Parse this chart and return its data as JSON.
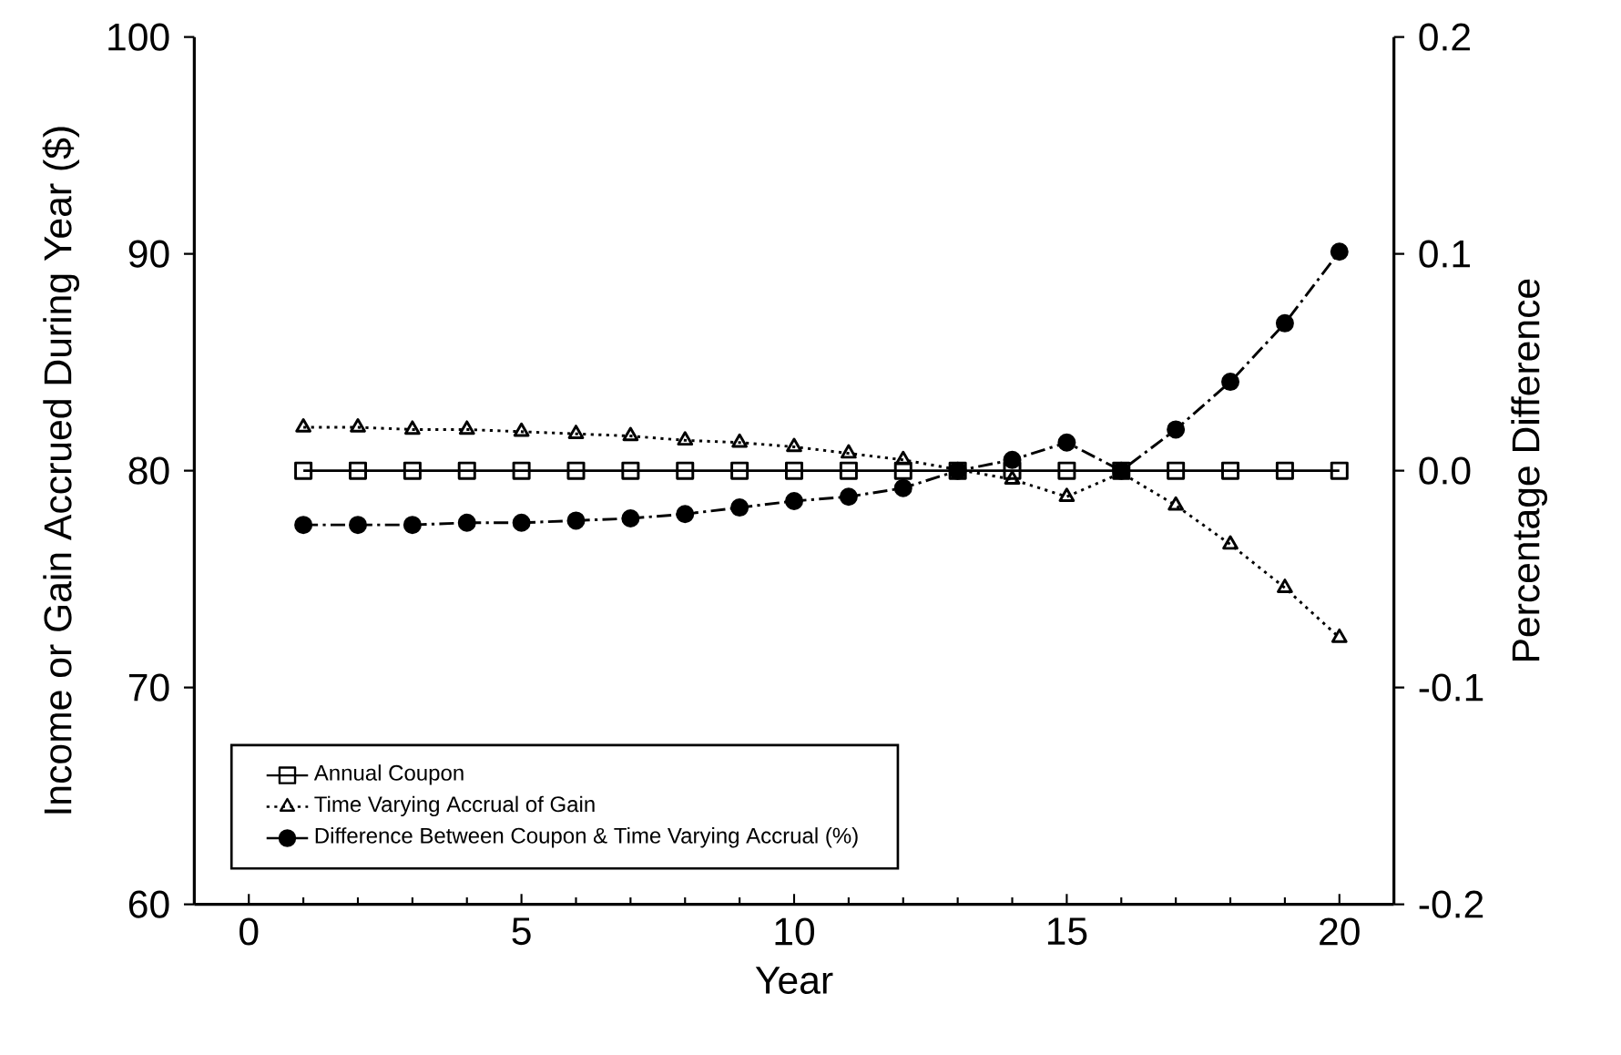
{
  "chart_data": {
    "type": "line",
    "xlabel": "Year",
    "ylabel": "Income or Gain Accrued During Year ($)",
    "y2label": "Percentage Difference",
    "x": [
      1,
      2,
      3,
      4,
      5,
      6,
      7,
      8,
      9,
      10,
      11,
      12,
      13,
      14,
      15,
      16,
      17,
      18,
      19,
      20
    ],
    "xlim": [
      -1,
      21
    ],
    "xticks": [
      0,
      5,
      10,
      15,
      20
    ],
    "ylim": [
      60,
      100
    ],
    "yticks": [
      60,
      70,
      80,
      90,
      100
    ],
    "y2lim": [
      -0.2,
      0.2
    ],
    "y2ticks": [
      -0.2,
      -0.1,
      {
        "value": 0,
        "label": "0.0"
      },
      0.1,
      0.2
    ],
    "legend": "bottom left",
    "series": [
      {
        "name": "Annual Coupon",
        "color": "#000000",
        "marker": "square",
        "line_style": "solid",
        "values": [
          80,
          80,
          80,
          80,
          80,
          80,
          80,
          80,
          80,
          80,
          80,
          80,
          80,
          80,
          80,
          80,
          80,
          80,
          80,
          80
        ]
      },
      {
        "name": "Time Varying Accrual of Gain",
        "color": "#000000",
        "marker": "triangle",
        "line_style": "dotted",
        "values": [
          82.0,
          82.0,
          81.9,
          81.9,
          81.8,
          81.7,
          81.6,
          81.4,
          81.3,
          81.1,
          80.8,
          80.5,
          null,
          79.6,
          78.8,
          79.9,
          78.4,
          76.6,
          74.6,
          72.3
        ]
      },
      {
        "name": "Difference Between Coupon & Time Varying Accrual (%)",
        "color": "#000000",
        "marker": "circle",
        "line_style": "dashed",
        "axis": "y2",
        "values": [
          -0.025,
          -0.025,
          -0.025,
          -0.024,
          -0.024,
          -0.023,
          -0.022,
          -0.02,
          -0.017,
          -0.014,
          -0.012,
          -0.008,
          0.0,
          0.005,
          0.013,
          0.0,
          0.019,
          0.041,
          0.068,
          0.101
        ]
      }
    ]
  }
}
